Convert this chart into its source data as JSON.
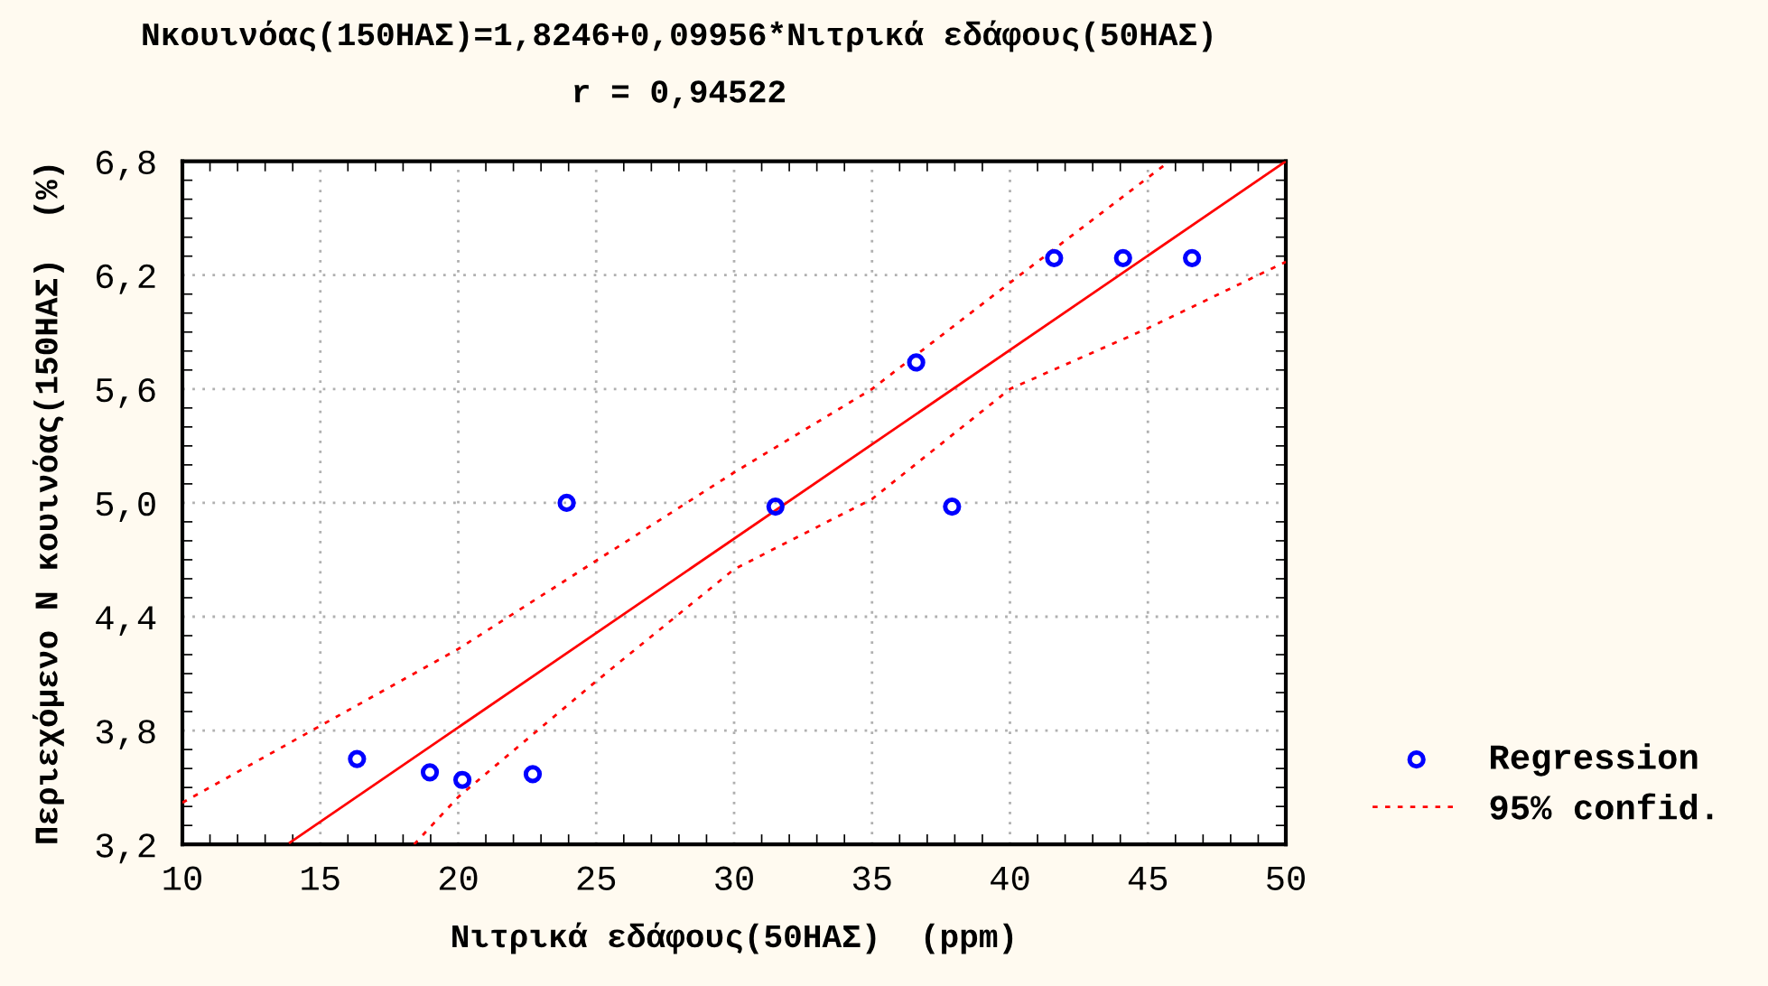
{
  "chart_data": {
    "type": "scatter",
    "title": "Nκουινόας(150ΗΑΣ)=1,8246+0,09956*Νιτρικά εδάφους(50ΗΑΣ)",
    "subtitle": "r = 0,94522",
    "xlabel": "Νιτρικά εδάφους(50ΗΑΣ)  (ppm)",
    "ylabel": "Περιεχόμενο Ν κουινόας(150ΗΑΣ)  (%)",
    "series": [
      {
        "name": "Regression",
        "color": "#0000ff",
        "marker": "circle",
        "x": [
          16.33,
          18.97,
          20.15,
          22.7,
          23.93,
          31.5,
          36.6,
          37.9,
          41.6,
          44.1,
          46.6
        ],
        "values": [
          3.65,
          3.58,
          3.54,
          3.57,
          5.0,
          4.98,
          5.74,
          4.98,
          6.29,
          6.29,
          6.29
        ]
      },
      {
        "type": "line",
        "color": "#ff0000",
        "line_style": "solid",
        "x": [
          13.9,
          50
        ],
        "values": [
          3.21,
          6.8
        ]
      },
      {
        "name": "95% confid.",
        "type": "line",
        "color": "#ff0000",
        "line_style": "dotted",
        "x": [
          10,
          20,
          30,
          35,
          40,
          45.6
        ],
        "values": [
          3.42,
          4.23,
          5.16,
          5.6,
          6.16,
          6.78
        ]
      },
      {
        "type": "line",
        "color": "#ff0000",
        "line_style": "dotted",
        "x": [
          18.4,
          20,
          25,
          30,
          35,
          40,
          45,
          50
        ],
        "values": [
          3.2,
          3.45,
          4.06,
          4.65,
          5.02,
          5.6,
          5.92,
          6.27
        ]
      }
    ],
    "xlim": [
      10,
      50
    ],
    "xticks": [
      10,
      15,
      20,
      25,
      30,
      35,
      40,
      45,
      50
    ],
    "ylim": [
      3.2,
      6.8
    ],
    "yticks": [
      {
        "value": 3.2,
        "label": "3,2"
      },
      {
        "value": 3.8,
        "label": "3,8"
      },
      {
        "value": 4.4,
        "label": "4,4"
      },
      {
        "value": 5.0,
        "label": "5,0"
      },
      {
        "value": 5.6,
        "label": "5,6"
      },
      {
        "value": 6.2,
        "label": "6,2"
      },
      {
        "value": 6.8,
        "label": "6,8"
      }
    ],
    "grid": true,
    "legend": "right"
  }
}
